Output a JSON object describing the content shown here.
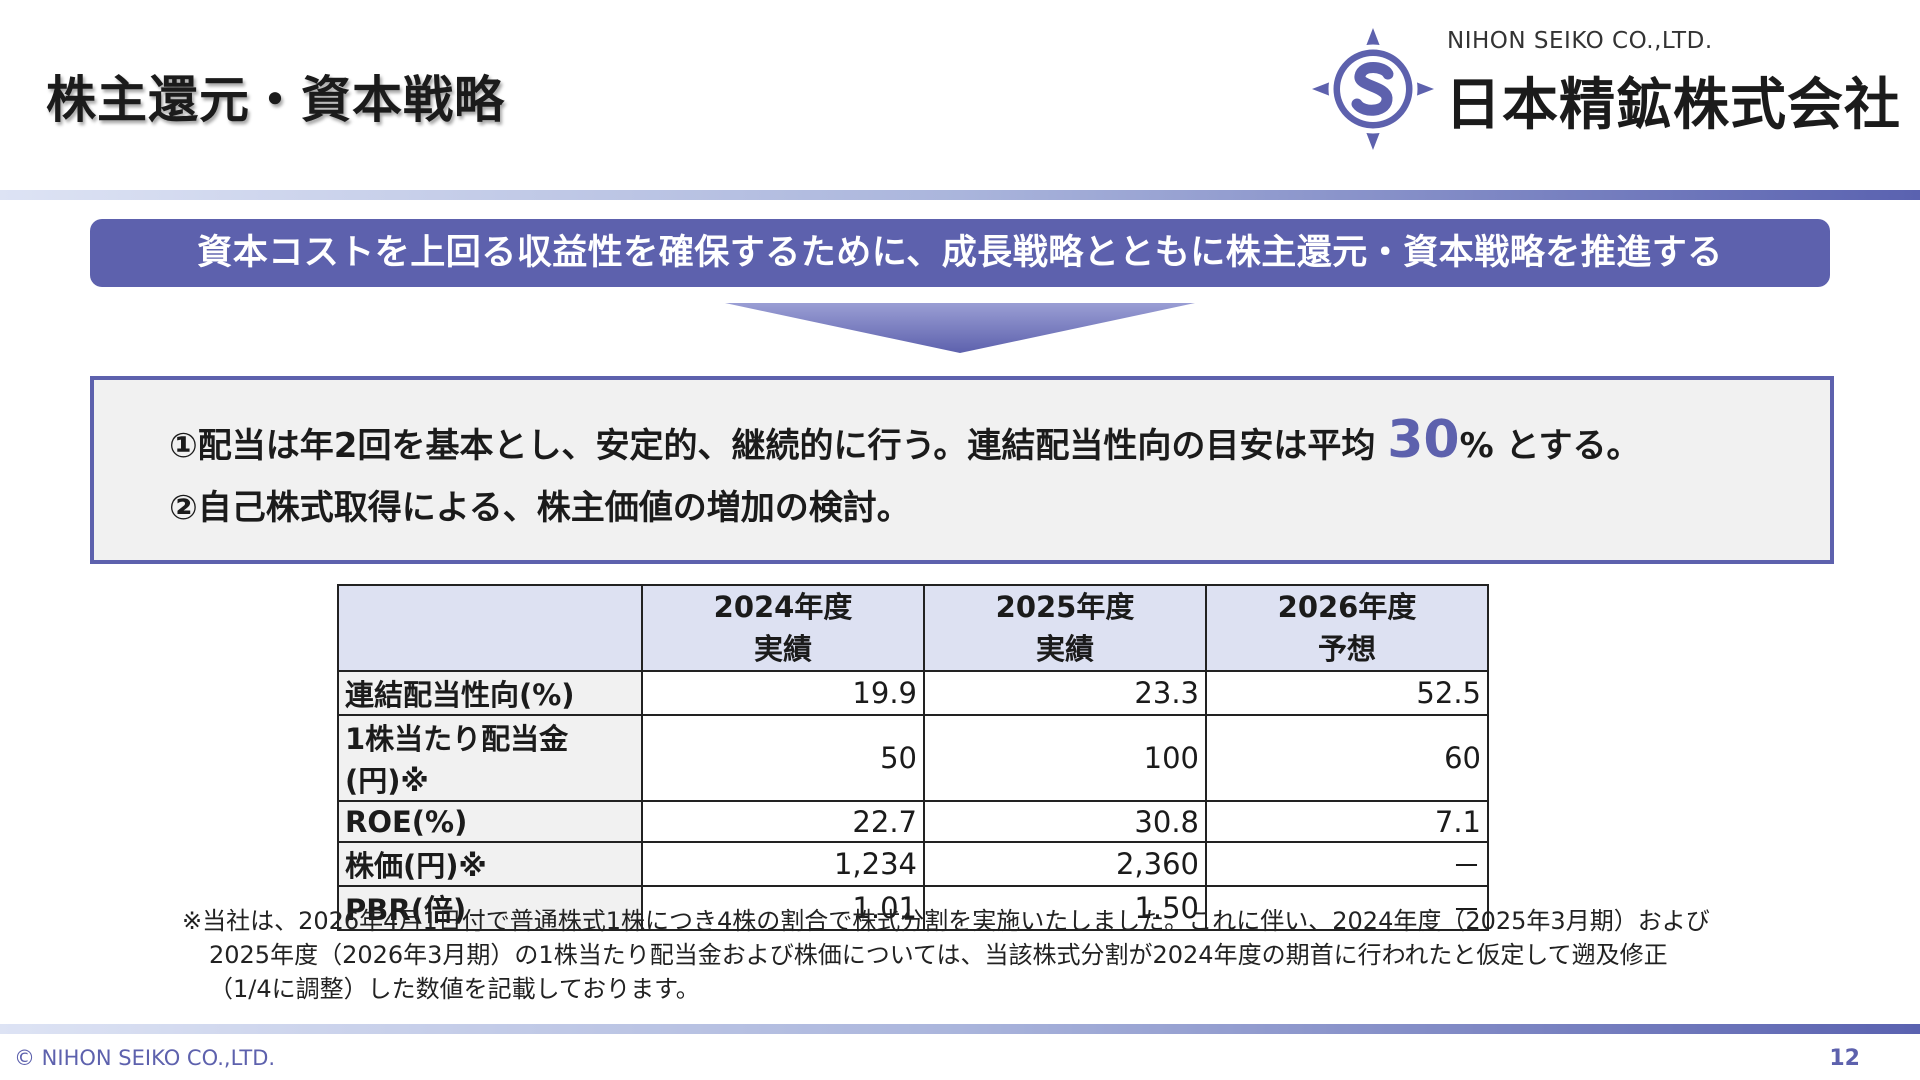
{
  "header": {
    "title": "株主還元・資本戦略",
    "logo_en": "NIHON SEIKO CO.,LTD.",
    "logo_jp": "日本精鉱株式会社"
  },
  "banner": "資本コストを上回る収益性を確保するために、成長戦略とともに株主還元・資本戦略を推進する",
  "points": {
    "p1_before": "①配当は年2回を基本とし、安定的、継続的に行う。連結配当性向の目安は平均 ",
    "p1_highlight": "30",
    "p1_after": "% とする。",
    "p2": "②自己株式取得による、株主価値の増加の検討。"
  },
  "table": {
    "headers": [
      {
        "year": "2024年度",
        "kind": "実績"
      },
      {
        "year": "2025年度",
        "kind": "実績"
      },
      {
        "year": "2026年度",
        "kind": "予想"
      }
    ],
    "rows": [
      {
        "label": "連結配当性向(%)",
        "values": [
          "19.9",
          "23.3",
          "52.5"
        ]
      },
      {
        "label": "1株当たり配当金(円)※",
        "values": [
          "50",
          "100",
          "60"
        ]
      },
      {
        "label": "ROE(%)",
        "values": [
          "22.7",
          "30.8",
          "7.1"
        ]
      },
      {
        "label": "株価(円)※",
        "values": [
          "1,234",
          "2,360",
          "－"
        ]
      },
      {
        "label": "PBR(倍)",
        "values": [
          "1.01",
          "1.50",
          "－"
        ]
      }
    ]
  },
  "footnote": {
    "line1": "※当社は、2026年4月1日付で普通株式1株につき4株の割合で株式分割を実施いたしました。これに伴い、2024年度（2025年3月期）および",
    "line2": "2025年度（2026年3月期）の1株当たり配当金および株価については、当該株式分割が2024年度の期首に行われたと仮定して遡及修正",
    "line3": "（1/4に調整）した数値を記載しております。"
  },
  "footer": {
    "copyright": "© NIHON SEIKO CO.,LTD.",
    "page": "12"
  },
  "colors": {
    "accent": "#5d61ad",
    "header_fill": "#dde1f2",
    "box_fill": "#f1f1f1"
  },
  "icons": {
    "logo_mark": "compass-s-logo-icon",
    "arrow": "down-chevron-arrow-icon"
  }
}
